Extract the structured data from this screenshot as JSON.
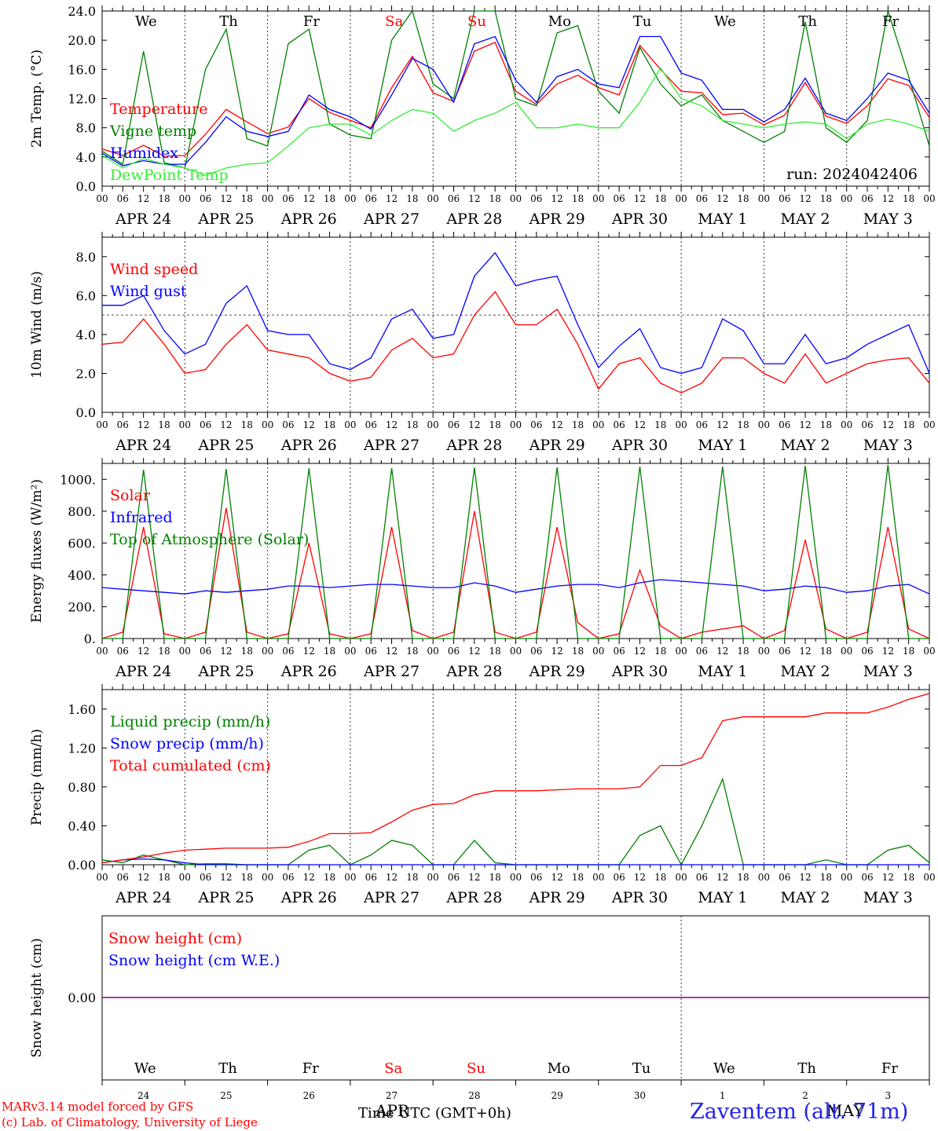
{
  "run_label": "run: 2024042406",
  "footer": {
    "model_line": "MARv3.14 model forced by GFS",
    "credit_line": "(c) Lab. of Climatology, University of Liege",
    "time_axis_label": "Time UTC (GMT+0h)",
    "overlap_month_left": "APR",
    "overlap_month_right": "MAY",
    "station": "Zaventem (alt. 71m)"
  },
  "colors": {
    "red": "#ff0000",
    "green": "#008000",
    "blue": "#0000ff",
    "lightgreen": "#33ee33",
    "purple": "#800080",
    "weekend": "#ff0000"
  },
  "days": {
    "weekday_labels": [
      "We",
      "Th",
      "Fr",
      "Sa",
      "Su",
      "Mo",
      "Tu",
      "We",
      "Th",
      "Fr"
    ],
    "weekend_flags": [
      false,
      false,
      false,
      true,
      true,
      false,
      false,
      false,
      false,
      false
    ],
    "date_labels": [
      "APR 24",
      "APR 25",
      "APR 26",
      "APR 27",
      "APR 28",
      "APR 29",
      "APR 30",
      "MAY  1",
      "MAY  2",
      "MAY  3"
    ],
    "hour_labels": [
      "00",
      "06",
      "12",
      "18"
    ],
    "hour_end_label": "00",
    "day_numbers": [
      "24",
      "25",
      "26",
      "27",
      "28",
      "29",
      "30",
      "1",
      "2",
      "3"
    ]
  },
  "chart_data": [
    {
      "type": "line",
      "ylabel": "2m Temp. (°C)",
      "ylim": [
        0,
        24
      ],
      "yticks": [
        "0.0",
        "4.0",
        "8.0",
        "12.0",
        "16.0",
        "20.0",
        "24.0"
      ],
      "x_hours": [
        0,
        6,
        12,
        18,
        24,
        30,
        36,
        42,
        48,
        54,
        60,
        66,
        72,
        78,
        84,
        90,
        96,
        102,
        108,
        114,
        120,
        126,
        132,
        138,
        144,
        150,
        156,
        162,
        168,
        174,
        180,
        186,
        192,
        198,
        204,
        210,
        216,
        222,
        228,
        234,
        240
      ],
      "series": [
        {
          "name": "Temperature",
          "color": "#ff0000",
          "values": [
            5.1,
            4.2,
            5.6,
            4.1,
            4.2,
            7.1,
            10.5,
            8.8,
            7.2,
            8.1,
            12.0,
            10.1,
            9.0,
            8.0,
            13.5,
            17.8,
            12.8,
            11.6,
            18.5,
            19.7,
            13.0,
            11.2,
            14.0,
            15.2,
            13.5,
            12.5,
            19.3,
            16.0,
            13.0,
            12.8,
            9.8,
            10.0,
            8.4,
            9.7,
            14.2,
            9.6,
            8.6,
            11.0,
            14.7,
            13.8,
            9.4
          ]
        },
        {
          "name": "Vigne temp",
          "color": "#008000",
          "values": [
            4.8,
            3.0,
            18.5,
            3.2,
            2.5,
            16.0,
            21.5,
            6.5,
            5.5,
            19.5,
            21.5,
            8.5,
            7.0,
            6.5,
            20.0,
            24.0,
            14.0,
            12.0,
            24.0,
            24.0,
            12.0,
            11.0,
            21.0,
            22.0,
            13.0,
            10.0,
            19.0,
            14.0,
            11.0,
            12.5,
            9.0,
            7.5,
            6.0,
            7.5,
            22.5,
            8.0,
            6.0,
            9.0,
            24.0,
            15.0,
            5.5
          ]
        },
        {
          "name": "Humidex",
          "color": "#0000ff",
          "values": [
            4.5,
            2.8,
            3.5,
            3.0,
            3.0,
            6.0,
            9.5,
            7.5,
            6.8,
            7.5,
            12.5,
            10.5,
            9.5,
            7.8,
            12.5,
            17.5,
            16.0,
            11.5,
            19.5,
            20.5,
            14.5,
            11.5,
            15.0,
            16.0,
            14.0,
            13.5,
            20.5,
            20.5,
            15.5,
            14.5,
            10.5,
            10.5,
            8.8,
            10.5,
            14.8,
            10.0,
            9.0,
            12.0,
            15.5,
            14.5,
            10.0
          ]
        },
        {
          "name": "DewPoint Temp",
          "color": "#33ee33",
          "values": [
            4.2,
            2.5,
            3.8,
            3.0,
            2.5,
            1.5,
            2.5,
            3.0,
            3.2,
            5.5,
            8.0,
            8.5,
            8.5,
            7.0,
            9.0,
            10.5,
            10.0,
            7.5,
            9.0,
            10.0,
            11.5,
            8.0,
            8.0,
            8.5,
            8.0,
            8.0,
            11.5,
            16.2,
            12.0,
            11.0,
            9.0,
            8.5,
            8.0,
            8.5,
            8.8,
            8.5,
            6.5,
            8.5,
            9.2,
            8.5,
            7.5
          ]
        }
      ]
    },
    {
      "type": "line",
      "ylabel": "10m Wind (m/s)",
      "ylim": [
        0,
        9
      ],
      "yticks": [
        "0.0",
        "2.0",
        "4.0",
        "6.0",
        "8.0"
      ],
      "reference_line": 5.0,
      "x_hours": [
        0,
        6,
        12,
        18,
        24,
        30,
        36,
        42,
        48,
        54,
        60,
        66,
        72,
        78,
        84,
        90,
        96,
        102,
        108,
        114,
        120,
        126,
        132,
        138,
        144,
        150,
        156,
        162,
        168,
        174,
        180,
        186,
        192,
        198,
        204,
        210,
        216,
        222,
        228,
        234,
        240
      ],
      "series": [
        {
          "name": "Wind speed",
          "color": "#ff0000",
          "values": [
            3.5,
            3.6,
            4.8,
            3.5,
            2.0,
            2.2,
            3.5,
            4.5,
            3.2,
            3.0,
            2.8,
            2.0,
            1.6,
            1.8,
            3.2,
            3.8,
            2.8,
            3.0,
            5.0,
            6.2,
            4.5,
            4.5,
            5.3,
            3.5,
            1.2,
            2.5,
            2.8,
            1.5,
            1.0,
            1.5,
            2.8,
            2.8,
            2.0,
            1.5,
            3.0,
            1.5,
            2.0,
            2.5,
            2.7,
            2.8,
            1.5
          ]
        },
        {
          "name": "Wind gust",
          "color": "#0000ff",
          "values": [
            5.5,
            5.5,
            6.0,
            4.2,
            3.0,
            3.5,
            5.6,
            6.5,
            4.2,
            4.0,
            4.0,
            2.5,
            2.2,
            2.8,
            4.8,
            5.3,
            3.8,
            4.0,
            7.0,
            8.2,
            6.5,
            6.8,
            7.0,
            4.5,
            2.3,
            3.4,
            4.3,
            2.3,
            2.0,
            2.3,
            4.8,
            4.2,
            2.5,
            2.5,
            4.0,
            2.5,
            2.8,
            3.5,
            4.0,
            4.5,
            2.0
          ]
        }
      ]
    },
    {
      "type": "line",
      "ylabel": "Energy fluxes (W/m²)",
      "ylim": [
        0,
        1100
      ],
      "yticks": [
        "0.",
        "200.",
        "400.",
        "600.",
        "800.",
        "1000."
      ],
      "x_hours": [
        0,
        6,
        12,
        18,
        24,
        30,
        36,
        42,
        48,
        54,
        60,
        66,
        72,
        78,
        84,
        90,
        96,
        102,
        108,
        114,
        120,
        126,
        132,
        138,
        144,
        150,
        156,
        162,
        168,
        174,
        180,
        186,
        192,
        198,
        204,
        210,
        216,
        222,
        228,
        234,
        240
      ],
      "series": [
        {
          "name": "Solar",
          "color": "#ff0000",
          "values": [
            0,
            40,
            700,
            30,
            0,
            40,
            820,
            40,
            0,
            30,
            600,
            30,
            0,
            30,
            700,
            50,
            0,
            40,
            800,
            40,
            0,
            40,
            700,
            100,
            0,
            30,
            430,
            80,
            0,
            40,
            60,
            80,
            0,
            50,
            620,
            60,
            0,
            40,
            700,
            60,
            0
          ]
        },
        {
          "name": "Infrared",
          "color": "#0000ff",
          "values": [
            320,
            310,
            300,
            290,
            280,
            300,
            290,
            300,
            310,
            330,
            330,
            320,
            330,
            340,
            340,
            330,
            320,
            320,
            350,
            330,
            290,
            310,
            330,
            340,
            340,
            320,
            350,
            370,
            360,
            350,
            340,
            330,
            300,
            310,
            330,
            320,
            290,
            300,
            330,
            340,
            280
          ]
        },
        {
          "name": "Top of Atmosphere (Solar)",
          "color": "#008000",
          "values": [
            0,
            0,
            1060,
            0,
            0,
            0,
            1065,
            0,
            0,
            0,
            1070,
            0,
            0,
            0,
            1070,
            0,
            0,
            0,
            1075,
            0,
            0,
            0,
            1075,
            0,
            0,
            0,
            1080,
            0,
            0,
            0,
            1080,
            0,
            0,
            0,
            1085,
            0,
            0,
            0,
            1090,
            0,
            0
          ]
        }
      ]
    },
    {
      "type": "line",
      "ylabel": "Precip (mm/h)",
      "ylim": [
        0,
        1.8
      ],
      "yticks": [
        "0.00",
        "0.40",
        "0.80",
        "1.20",
        "1.60"
      ],
      "x_hours": [
        0,
        6,
        12,
        18,
        24,
        30,
        36,
        42,
        48,
        54,
        60,
        66,
        72,
        78,
        84,
        90,
        96,
        102,
        108,
        114,
        120,
        126,
        132,
        138,
        144,
        150,
        156,
        162,
        168,
        174,
        180,
        186,
        192,
        198,
        204,
        210,
        216,
        222,
        228,
        234,
        240
      ],
      "series": [
        {
          "name": "Liquid precip (mm/h)",
          "color": "#008000",
          "values": [
            0.05,
            0.02,
            0.1,
            0.05,
            0.0,
            0.01,
            0.01,
            0.0,
            0.0,
            0.0,
            0.15,
            0.2,
            0.0,
            0.1,
            0.25,
            0.2,
            0.0,
            0.0,
            0.25,
            0.02,
            0.0,
            0.0,
            0.0,
            0.0,
            0.0,
            0.0,
            0.3,
            0.4,
            0.0,
            0.4,
            0.88,
            0.0,
            0.0,
            0.0,
            0.0,
            0.05,
            0.0,
            0.0,
            0.15,
            0.2,
            0.02
          ]
        },
        {
          "name": "Snow precip (mm/h)",
          "color": "#0000ff",
          "values": [
            0.02,
            0.05,
            0.06,
            0.05,
            0.02,
            0.0,
            0.0,
            0.0,
            0.0,
            0.0,
            0.0,
            0.0,
            0.0,
            0.0,
            0.0,
            0.0,
            0.0,
            0.0,
            0.0,
            0.0,
            0.0,
            0.0,
            0.0,
            0.0,
            0.0,
            0.0,
            0.0,
            0.0,
            0.0,
            0.0,
            0.0,
            0.0,
            0.0,
            0.0,
            0.0,
            0.0,
            0.0,
            0.0,
            0.0,
            0.0,
            0.0
          ]
        },
        {
          "name": "Total cumulated (cm)",
          "color": "#ff0000",
          "values": [
            0.02,
            0.05,
            0.08,
            0.12,
            0.15,
            0.16,
            0.17,
            0.17,
            0.17,
            0.18,
            0.24,
            0.32,
            0.32,
            0.33,
            0.44,
            0.56,
            0.62,
            0.63,
            0.72,
            0.76,
            0.76,
            0.76,
            0.77,
            0.78,
            0.78,
            0.78,
            0.8,
            1.02,
            1.02,
            1.1,
            1.48,
            1.52,
            1.52,
            1.52,
            1.52,
            1.56,
            1.56,
            1.56,
            1.62,
            1.7,
            1.76
          ]
        }
      ]
    },
    {
      "type": "line",
      "ylabel": "Snow height (cm)",
      "yticks": [
        "0.00"
      ],
      "series": [
        {
          "name": "Snow height (cm)",
          "color": "#ff0000",
          "values": [
            0.0,
            0.0
          ]
        },
        {
          "name": "Snow height (cm W.E.)",
          "color": "#0000ff",
          "values": [
            0.0,
            0.0
          ]
        }
      ]
    }
  ]
}
